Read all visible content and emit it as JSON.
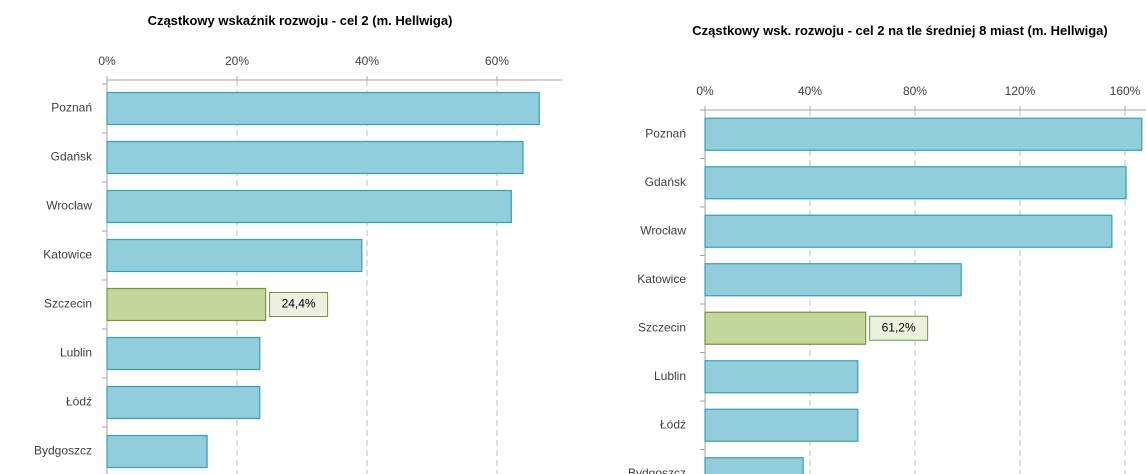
{
  "chart_data": [
    {
      "type": "bar",
      "orientation": "horizontal",
      "title": "Cząstkowy wskaźnik rozwoju - cel 2 (m. Hellwiga)",
      "categories": [
        "Poznań",
        "Gdańsk",
        "Wrocław",
        "Katowice",
        "Szczecin",
        "Lublin",
        "Łódź",
        "Bydgoszcz"
      ],
      "values": [
        66.5,
        64.0,
        62.2,
        39.2,
        24.4,
        23.5,
        23.5,
        15.4
      ],
      "value_labels": [
        null,
        null,
        null,
        null,
        "24,4%",
        null,
        null,
        null
      ],
      "colors": [
        "#92cddc",
        "#92cddc",
        "#92cddc",
        "#92cddc",
        "#c3d69b",
        "#92cddc",
        "#92cddc",
        "#92cddc"
      ],
      "xlim": [
        0,
        70
      ],
      "xticks": [
        {
          "value": 0,
          "label": "0%"
        },
        {
          "value": 20,
          "label": "20%"
        },
        {
          "value": 40,
          "label": "40%"
        },
        {
          "value": 60,
          "label": "60%"
        }
      ],
      "grid": true
    },
    {
      "type": "bar",
      "orientation": "horizontal",
      "title": "Cząstkowy wsk. rozwoju - cel 2 na tle średniej 8 miast  (m. Hellwiga)",
      "categories": [
        "Poznań",
        "Gdańsk",
        "Wrocław",
        "Katowice",
        "Szczecin",
        "Lublin",
        "Łódź",
        "Bydgoszcz"
      ],
      "values": [
        166.4,
        160.4,
        155.0,
        97.6,
        61.2,
        58.2,
        58.2,
        37.4
      ],
      "value_labels": [
        null,
        null,
        null,
        null,
        "61,2%",
        null,
        null,
        null
      ],
      "colors": [
        "#92cddc",
        "#92cddc",
        "#92cddc",
        "#92cddc",
        "#c3d69b",
        "#92cddc",
        "#92cddc",
        "#92cddc"
      ],
      "xlim": [
        0,
        168
      ],
      "xticks": [
        {
          "value": 0,
          "label": "0%"
        },
        {
          "value": 40,
          "label": "40%"
        },
        {
          "value": 80,
          "label": "80%"
        },
        {
          "value": 120,
          "label": "120%"
        },
        {
          "value": 160,
          "label": "160%"
        }
      ],
      "grid": true
    }
  ]
}
